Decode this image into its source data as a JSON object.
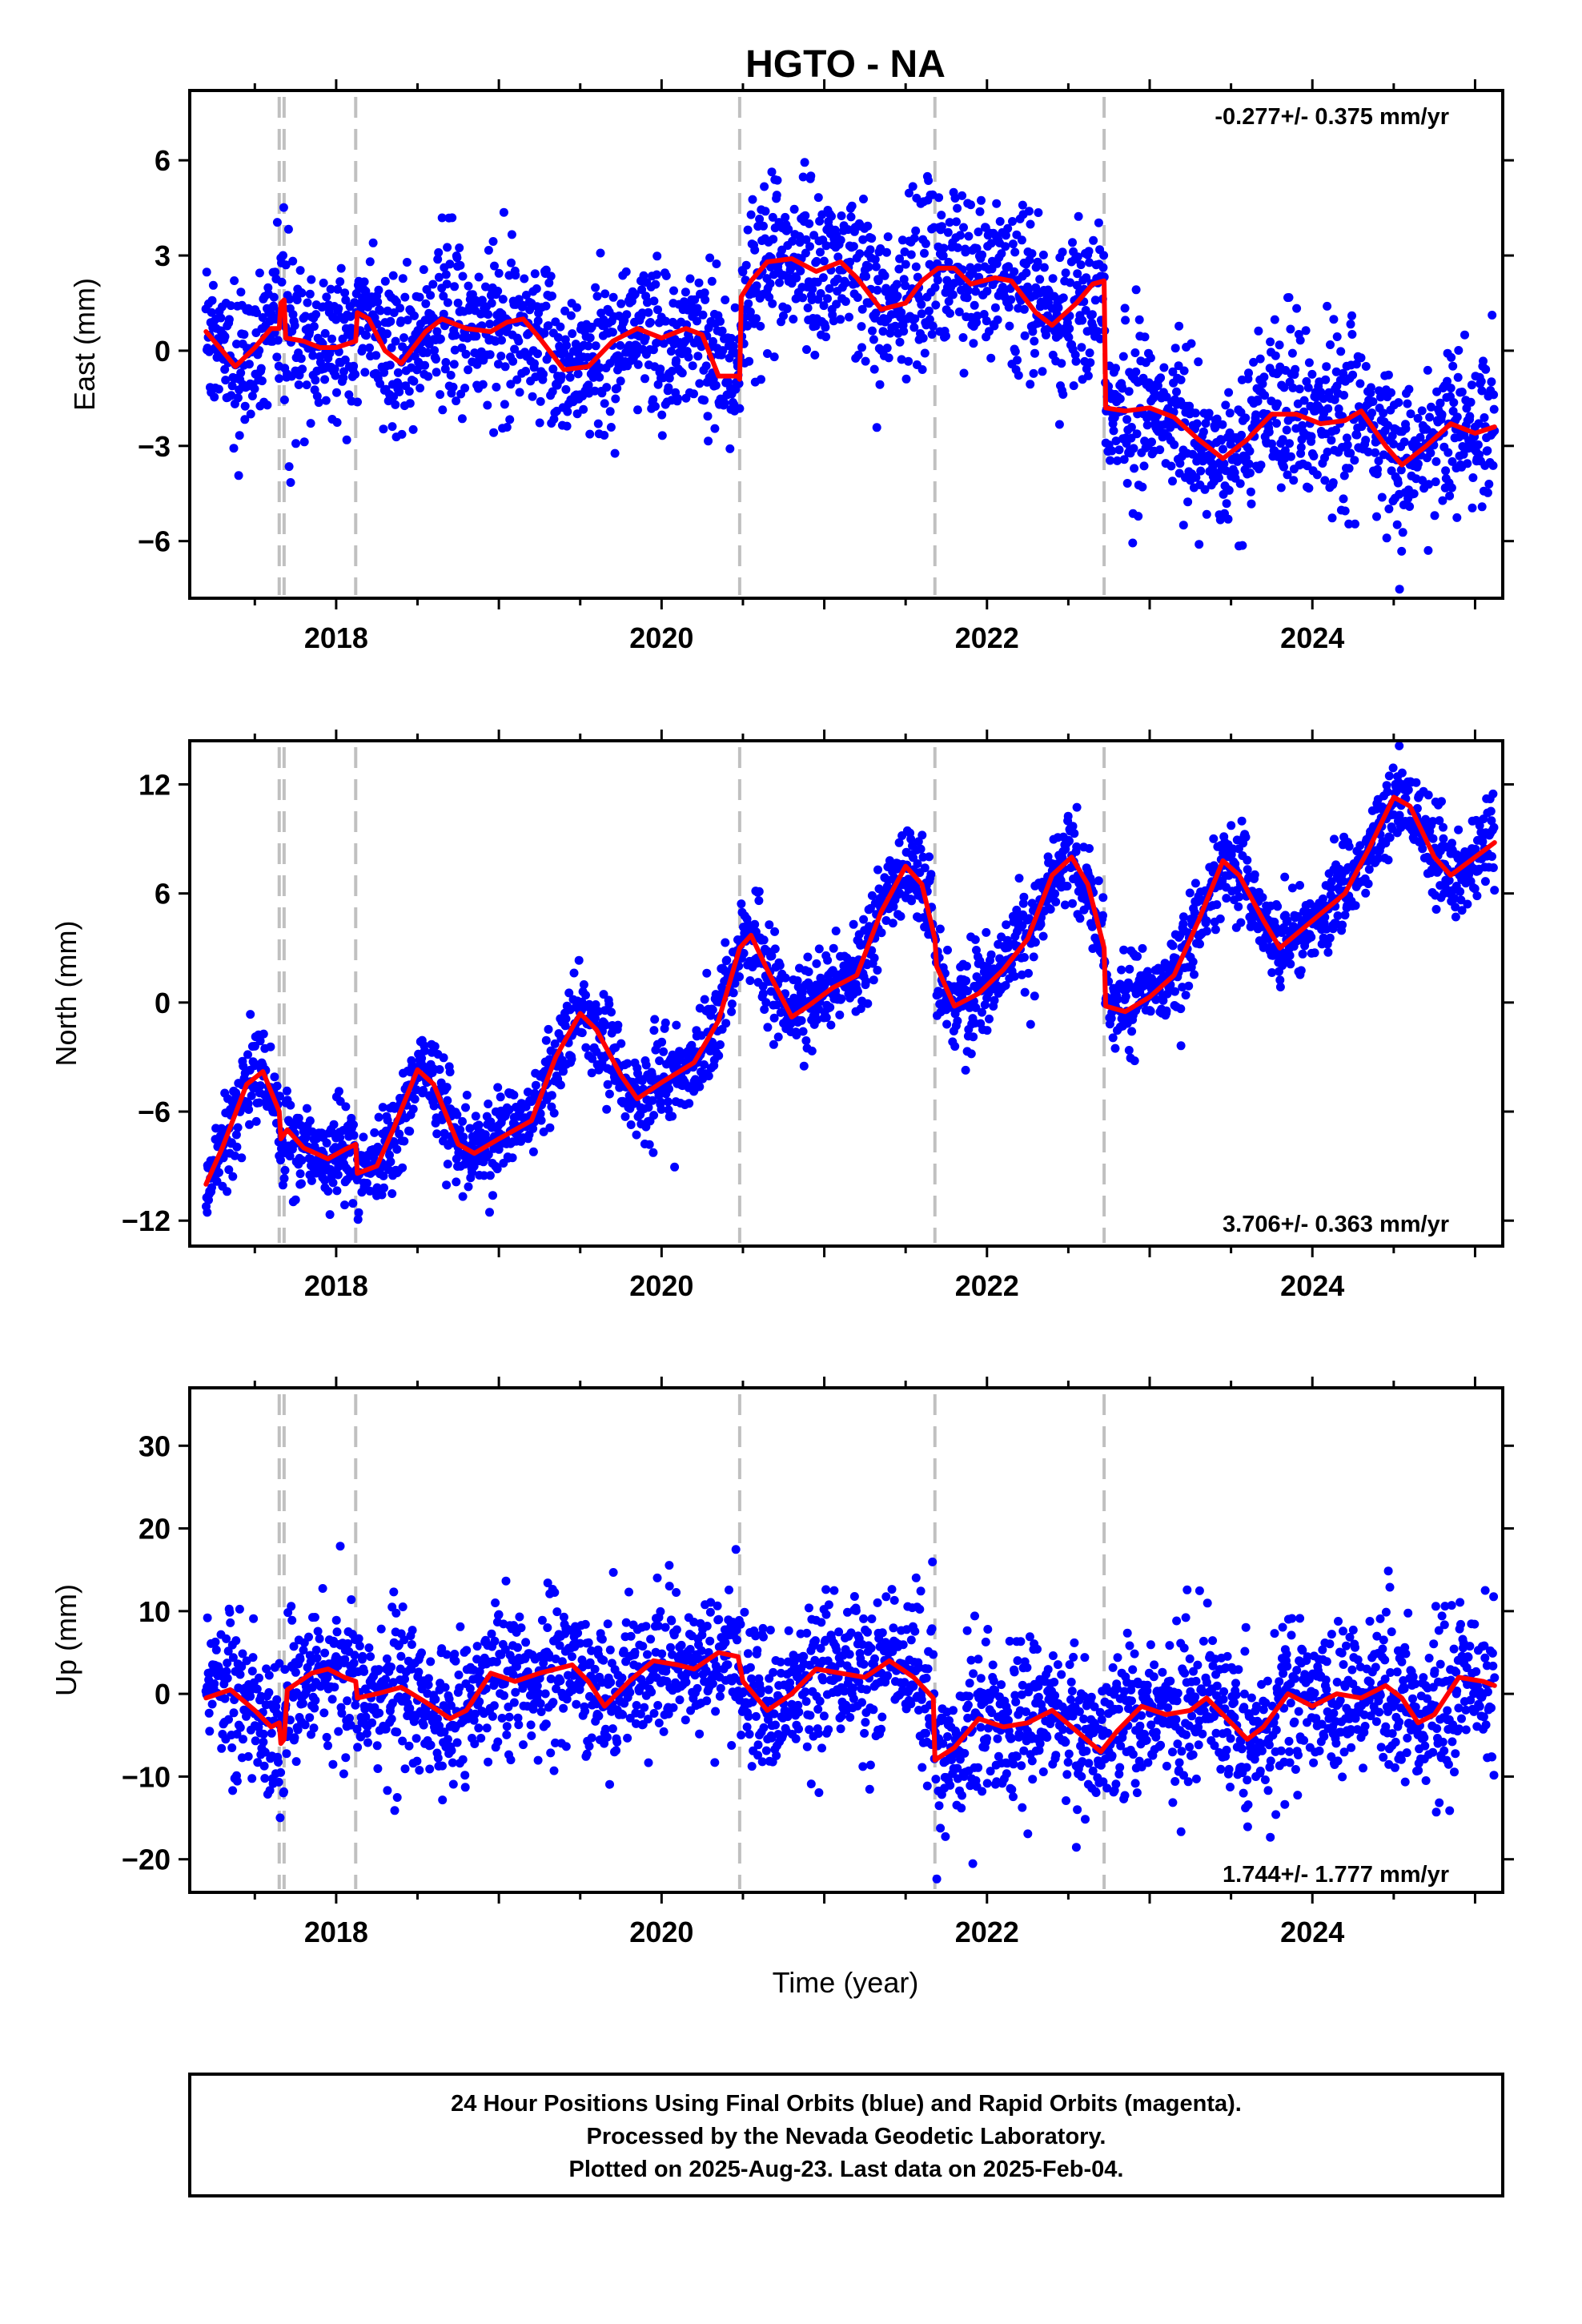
{
  "title": "HGTO - NA",
  "x_axis_label": "Time (year)",
  "footer": {
    "lines": [
      "24 Hour Positions Using Final Orbits (blue) and Rapid Orbits (magenta).",
      "Processed by the Nevada Geodetic Laboratory.",
      "Plotted on 2025-Aug-23. Last data on 2025-Feb-04."
    ]
  },
  "colors": {
    "points": "#0000ff",
    "model": "#ff0000",
    "event_lines": "#c0c0c0",
    "frame": "#000000"
  },
  "chart_data": [
    {
      "type": "scatter",
      "name": "east",
      "ylabel": "East (mm)",
      "rate_label": "-0.277+/- 0.375 mm/yr",
      "xlim": [
        2017.1,
        2025.17
      ],
      "ylim": [
        -7.8,
        8.2
      ],
      "yticks": [
        -6,
        -3,
        0,
        3,
        6
      ],
      "ytick_labels": [
        "−6",
        "−3",
        "0",
        "3",
        "6"
      ],
      "xticks": [
        2018,
        2020,
        2022,
        2024
      ],
      "xtick_labels": [
        "2018",
        "2020",
        "2022",
        "2024"
      ],
      "event_lines": [
        2017.65,
        2017.68,
        2018.12,
        2020.48,
        2021.68,
        2022.72
      ],
      "model": [
        [
          2017.2,
          0.6
        ],
        [
          2017.3,
          0.0
        ],
        [
          2017.38,
          -0.5
        ],
        [
          2017.5,
          0.1
        ],
        [
          2017.6,
          0.7
        ],
        [
          2017.65,
          0.7
        ],
        [
          2017.66,
          1.5
        ],
        [
          2017.68,
          1.6
        ],
        [
          2017.69,
          0.4
        ],
        [
          2017.8,
          0.3
        ],
        [
          2017.9,
          0.1
        ],
        [
          2018.0,
          0.1
        ],
        [
          2018.12,
          0.3
        ],
        [
          2018.13,
          1.2
        ],
        [
          2018.2,
          1.0
        ],
        [
          2018.3,
          0.0
        ],
        [
          2018.4,
          -0.4
        ],
        [
          2018.55,
          0.6
        ],
        [
          2018.65,
          1.0
        ],
        [
          2018.8,
          0.7
        ],
        [
          2018.95,
          0.6
        ],
        [
          2019.05,
          0.9
        ],
        [
          2019.15,
          1.0
        ],
        [
          2019.25,
          0.4
        ],
        [
          2019.4,
          -0.6
        ],
        [
          2019.55,
          -0.5
        ],
        [
          2019.7,
          0.3
        ],
        [
          2019.85,
          0.7
        ],
        [
          2020.0,
          0.4
        ],
        [
          2020.15,
          0.7
        ],
        [
          2020.25,
          0.5
        ],
        [
          2020.35,
          -0.8
        ],
        [
          2020.47,
          -0.8
        ],
        [
          2020.48,
          -0.9
        ],
        [
          2020.49,
          1.7
        ],
        [
          2020.55,
          2.2
        ],
        [
          2020.65,
          2.8
        ],
        [
          2020.8,
          2.9
        ],
        [
          2020.95,
          2.5
        ],
        [
          2021.1,
          2.8
        ],
        [
          2021.2,
          2.3
        ],
        [
          2021.35,
          1.3
        ],
        [
          2021.5,
          1.5
        ],
        [
          2021.6,
          2.2
        ],
        [
          2021.7,
          2.6
        ],
        [
          2021.8,
          2.6
        ],
        [
          2021.9,
          2.1
        ],
        [
          2022.05,
          2.3
        ],
        [
          2022.15,
          2.2
        ],
        [
          2022.3,
          1.2
        ],
        [
          2022.4,
          0.8
        ],
        [
          2022.55,
          1.5
        ],
        [
          2022.65,
          2.1
        ],
        [
          2022.72,
          2.2
        ],
        [
          2022.73,
          -1.8
        ],
        [
          2022.85,
          -1.9
        ],
        [
          2023.0,
          -1.8
        ],
        [
          2023.15,
          -2.1
        ],
        [
          2023.3,
          -2.8
        ],
        [
          2023.45,
          -3.4
        ],
        [
          2023.6,
          -2.8
        ],
        [
          2023.75,
          -2.0
        ],
        [
          2023.9,
          -2.0
        ],
        [
          2024.05,
          -2.3
        ],
        [
          2024.2,
          -2.2
        ],
        [
          2024.3,
          -1.9
        ],
        [
          2024.45,
          -3.0
        ],
        [
          2024.55,
          -3.6
        ],
        [
          2024.7,
          -3.0
        ],
        [
          2024.85,
          -2.3
        ],
        [
          2025.0,
          -2.6
        ],
        [
          2025.12,
          -2.4
        ]
      ]
    },
    {
      "type": "scatter",
      "name": "north",
      "ylabel": "North (mm)",
      "rate_label": "3.706+/- 0.363 mm/yr",
      "xlim": [
        2017.1,
        2025.17
      ],
      "ylim": [
        -13.4,
        14.4
      ],
      "yticks": [
        -12,
        -6,
        0,
        6,
        12
      ],
      "ytick_labels": [
        "−12",
        "−6",
        "0",
        "6",
        "12"
      ],
      "xticks": [
        2018,
        2020,
        2022,
        2024
      ],
      "xtick_labels": [
        "2018",
        "2020",
        "2022",
        "2024"
      ],
      "event_lines": [
        2017.65,
        2017.68,
        2018.12,
        2020.48,
        2021.68,
        2022.72
      ],
      "model": [
        [
          2017.2,
          -10.0
        ],
        [
          2017.3,
          -8.0
        ],
        [
          2017.45,
          -4.5
        ],
        [
          2017.55,
          -3.8
        ],
        [
          2017.65,
          -6.0
        ],
        [
          2017.66,
          -7.5
        ],
        [
          2017.7,
          -7.0
        ],
        [
          2017.8,
          -8.0
        ],
        [
          2017.95,
          -8.6
        ],
        [
          2018.05,
          -8.1
        ],
        [
          2018.12,
          -7.8
        ],
        [
          2018.13,
          -9.4
        ],
        [
          2018.25,
          -9.0
        ],
        [
          2018.35,
          -7.0
        ],
        [
          2018.5,
          -3.7
        ],
        [
          2018.6,
          -4.5
        ],
        [
          2018.75,
          -7.8
        ],
        [
          2018.85,
          -8.3
        ],
        [
          2019.0,
          -7.5
        ],
        [
          2019.2,
          -6.5
        ],
        [
          2019.35,
          -3.0
        ],
        [
          2019.5,
          -0.6
        ],
        [
          2019.6,
          -1.5
        ],
        [
          2019.75,
          -4.0
        ],
        [
          2019.85,
          -5.3
        ],
        [
          2020.0,
          -4.4
        ],
        [
          2020.2,
          -3.3
        ],
        [
          2020.35,
          -1.0
        ],
        [
          2020.48,
          3.0
        ],
        [
          2020.55,
          3.7
        ],
        [
          2020.65,
          1.8
        ],
        [
          2020.8,
          -0.8
        ],
        [
          2020.9,
          -0.2
        ],
        [
          2021.05,
          0.8
        ],
        [
          2021.2,
          1.5
        ],
        [
          2021.35,
          5.0
        ],
        [
          2021.5,
          7.5
        ],
        [
          2021.6,
          6.5
        ],
        [
          2021.68,
          3.5
        ],
        [
          2021.69,
          2.0
        ],
        [
          2021.8,
          -0.2
        ],
        [
          2021.95,
          0.5
        ],
        [
          2022.1,
          1.8
        ],
        [
          2022.25,
          3.5
        ],
        [
          2022.4,
          7.0
        ],
        [
          2022.52,
          8.0
        ],
        [
          2022.62,
          6.5
        ],
        [
          2022.72,
          3.0
        ],
        [
          2022.73,
          -0.2
        ],
        [
          2022.85,
          -0.5
        ],
        [
          2023.0,
          0.3
        ],
        [
          2023.15,
          1.5
        ],
        [
          2023.3,
          4.5
        ],
        [
          2023.45,
          7.8
        ],
        [
          2023.55,
          7.0
        ],
        [
          2023.7,
          4.5
        ],
        [
          2023.8,
          3.0
        ],
        [
          2024.0,
          4.5
        ],
        [
          2024.2,
          6.0
        ],
        [
          2024.35,
          8.5
        ],
        [
          2024.5,
          11.3
        ],
        [
          2024.6,
          10.8
        ],
        [
          2024.75,
          8.0
        ],
        [
          2024.85,
          7.0
        ],
        [
          2025.0,
          8.0
        ],
        [
          2025.12,
          8.8
        ]
      ]
    },
    {
      "type": "scatter",
      "name": "up",
      "ylabel": "Up (mm)",
      "rate_label": "1.744+/- 1.777 mm/yr",
      "xlim": [
        2017.1,
        2025.17
      ],
      "ylim": [
        -24,
        37
      ],
      "yticks": [
        -20,
        -10,
        0,
        10,
        20,
        30
      ],
      "ytick_labels": [
        "−20",
        "−10",
        "0",
        "10",
        "20",
        "30"
      ],
      "xticks": [
        2018,
        2020,
        2022,
        2024
      ],
      "xtick_labels": [
        "2018",
        "2020",
        "2022",
        "2024"
      ],
      "event_lines": [
        2017.65,
        2017.68,
        2018.12,
        2020.48,
        2021.68,
        2022.72
      ],
      "model": [
        [
          2017.2,
          -0.5
        ],
        [
          2017.35,
          0.5
        ],
        [
          2017.5,
          -2.0
        ],
        [
          2017.6,
          -4.0
        ],
        [
          2017.65,
          -3.5
        ],
        [
          2017.66,
          -6.0
        ],
        [
          2017.68,
          -5.5
        ],
        [
          2017.7,
          0.5
        ],
        [
          2017.85,
          2.5
        ],
        [
          2017.95,
          3.0
        ],
        [
          2018.05,
          2.0
        ],
        [
          2018.12,
          1.5
        ],
        [
          2018.13,
          -0.5
        ],
        [
          2018.25,
          0.0
        ],
        [
          2018.4,
          0.8
        ],
        [
          2018.55,
          -1.0
        ],
        [
          2018.7,
          -3.0
        ],
        [
          2018.8,
          -2.0
        ],
        [
          2018.95,
          2.5
        ],
        [
          2019.1,
          1.5
        ],
        [
          2019.25,
          2.5
        ],
        [
          2019.45,
          3.5
        ],
        [
          2019.55,
          1.5
        ],
        [
          2019.65,
          -1.5
        ],
        [
          2019.8,
          1.5
        ],
        [
          2019.95,
          4.0
        ],
        [
          2020.1,
          3.5
        ],
        [
          2020.2,
          3.0
        ],
        [
          2020.35,
          5.0
        ],
        [
          2020.47,
          4.5
        ],
        [
          2020.5,
          1.5
        ],
        [
          2020.65,
          -2.0
        ],
        [
          2020.8,
          0.0
        ],
        [
          2020.95,
          3.0
        ],
        [
          2021.1,
          2.5
        ],
        [
          2021.25,
          2.0
        ],
        [
          2021.4,
          4.0
        ],
        [
          2021.55,
          2.0
        ],
        [
          2021.67,
          -0.5
        ],
        [
          2021.68,
          -8.0
        ],
        [
          2021.8,
          -6.5
        ],
        [
          2021.95,
          -3.0
        ],
        [
          2022.1,
          -4.0
        ],
        [
          2022.25,
          -3.5
        ],
        [
          2022.4,
          -2.0
        ],
        [
          2022.55,
          -4.5
        ],
        [
          2022.7,
          -7.0
        ],
        [
          2022.8,
          -4.5
        ],
        [
          2022.95,
          -1.5
        ],
        [
          2023.1,
          -2.5
        ],
        [
          2023.25,
          -2.0
        ],
        [
          2023.35,
          -0.5
        ],
        [
          2023.45,
          -2.5
        ],
        [
          2023.6,
          -5.5
        ],
        [
          2023.7,
          -4.0
        ],
        [
          2023.85,
          0.0
        ],
        [
          2024.0,
          -1.5
        ],
        [
          2024.15,
          0.0
        ],
        [
          2024.3,
          -0.5
        ],
        [
          2024.45,
          1.0
        ],
        [
          2024.55,
          -0.5
        ],
        [
          2024.65,
          -3.5
        ],
        [
          2024.75,
          -2.5
        ],
        [
          2024.9,
          2.0
        ],
        [
          2025.05,
          1.5
        ],
        [
          2025.12,
          1.0
        ]
      ]
    }
  ]
}
